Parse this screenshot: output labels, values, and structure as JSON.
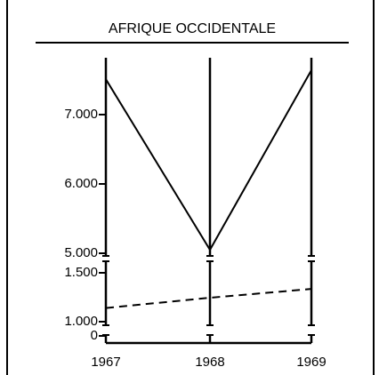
{
  "chart_data": {
    "type": "line",
    "title": "AFRIQUE OCCIDENTALE",
    "categories": [
      "1967",
      "1968",
      "1969"
    ],
    "series": [
      {
        "color": "#000000",
        "dash": false,
        "values": [
          7510,
          5050,
          7640
        ]
      },
      {
        "color": "#000000",
        "dash": true,
        "values": [
          1140,
          1245,
          1335
        ]
      }
    ],
    "y_segments": [
      {
        "ylim": [
          5000,
          7820
        ],
        "yticks": [
          {
            "value": 5000,
            "label": "5.000"
          },
          {
            "value": 6000,
            "label": "6.000"
          },
          {
            "value": 7000,
            "label": "7.000"
          }
        ]
      },
      {
        "ylim": [
          970,
          1620
        ],
        "yticks": [
          {
            "value": 1000,
            "label": "1.000"
          },
          {
            "value": 1500,
            "label": "1.500"
          }
        ]
      },
      {
        "ylim": [
          0,
          100
        ],
        "yticks": [
          0
        ]
      }
    ]
  }
}
